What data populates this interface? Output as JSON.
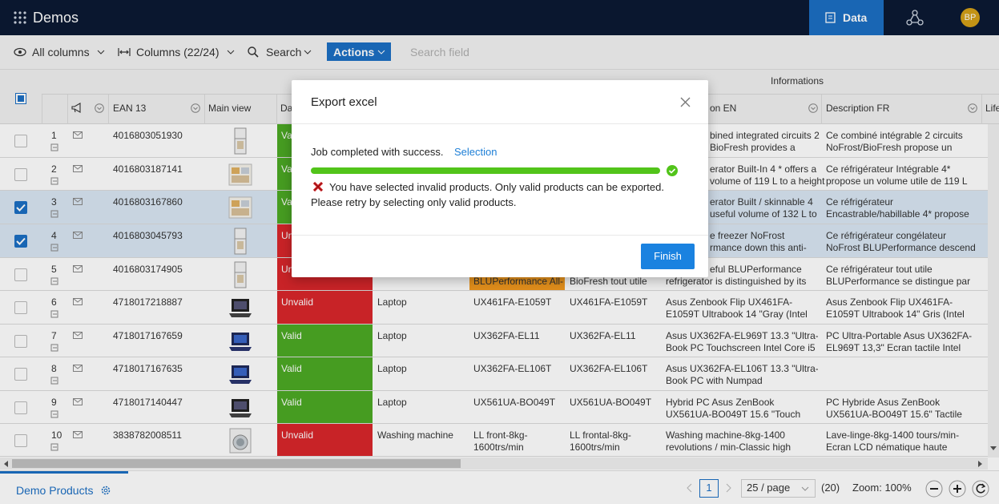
{
  "header": {
    "app_title": "Demos",
    "tab": "Data",
    "avatar": "BP"
  },
  "toolbar": {
    "all_columns": "All columns",
    "columns": "Columns (22/24)",
    "search": "Search",
    "actions": "Actions",
    "search_field": "Search field"
  },
  "table": {
    "group_header": "Informations",
    "columns": [
      {
        "label": "EAN 13",
        "x": 141
      },
      {
        "label": "Main view",
        "x": 260
      },
      {
        "label": "Da",
        "x": 350
      },
      {
        "label": "on EN",
        "x": 886
      },
      {
        "label": "Description FR",
        "x": 1031
      },
      {
        "label": "Life",
        "x": 1230
      }
    ],
    "rows": [
      {
        "number": "1",
        "ean": "4016803051930",
        "status": "Va",
        "status_color": "#4caa24",
        "checked": false,
        "desc_en": [
          "bined integrated circuits 2",
          "BioFresh provides a"
        ],
        "desc_fr": [
          "Ce combiné intégrable 2 circuits",
          "NoFrost/BioFresh propose un"
        ]
      },
      {
        "number": "2",
        "ean": "4016803187141",
        "status": "Va",
        "status_color": "#4caa24",
        "checked": false,
        "desc_en": [
          "erator Built-In 4 * offers a",
          "volume of 119 L to a height"
        ],
        "desc_fr": [
          "Ce réfrigérateur Intégrable 4*",
          "propose un volume utile de 119 L"
        ]
      },
      {
        "number": "3",
        "ean": "4016803167860",
        "status": "Va",
        "status_color": "#4caa24",
        "checked": true,
        "desc_en": [
          "erator Built / skinnable 4",
          "useful volume of 132 L to"
        ],
        "desc_fr": [
          "Ce réfrigérateur",
          "Encastrable/habillable 4* propose"
        ]
      },
      {
        "number": "4",
        "ean": "4016803045793",
        "status": "Un",
        "status_color": "#d9262b",
        "checked": true,
        "desc_en": [
          "e freezer NoFrost",
          "rmance down this anti-"
        ],
        "desc_fr": [
          "Ce réfrigérateur congélateur",
          "NoFrost BLUPerformance descend"
        ]
      },
      {
        "number": "5",
        "ean": "4016803174905",
        "status": "Un",
        "status_color": "#d9262b",
        "checked": false,
        "col1": [
          null,
          "BLUPerformance All-"
        ],
        "col1_color": "#f29a1e",
        "col2": [
          null,
          "BioFresh tout utile"
        ],
        "desc_en": [
          "eful BLUPerformance",
          "refrigerator is distinguished by its"
        ],
        "desc_fr": [
          "Ce réfrigérateur tout utile",
          "BLUPerformance se distingue par"
        ]
      },
      {
        "number": "6",
        "ean": "4718017218887",
        "status": "Unvalid",
        "status_color": "#d9262b",
        "checked": false,
        "type": "Laptop",
        "col1": [
          "UX461FA-E1059T"
        ],
        "col2": [
          "UX461FA-E1059T"
        ],
        "desc_en": [
          "Asus Zenbook Flip UX461FA-",
          "E1059T Ultrabook 14 \"Gray (Intel"
        ],
        "desc_fr": [
          "Asus Zenbook Flip UX461FA-",
          "E1059T Ultrabook 14\" Gris (Intel"
        ]
      },
      {
        "number": "7",
        "ean": "4718017167659",
        "status": "Valid",
        "status_color": "#4caa24",
        "checked": false,
        "type": "Laptop",
        "col1": [
          "UX362FA-EL11"
        ],
        "col2": [
          "UX362FA-EL11"
        ],
        "desc_en": [
          "Asus UX362FA-EL969T 13.3 \"Ultra-",
          "Book PC Touchscreen Intel Core i5"
        ],
        "desc_fr": [
          "PC Ultra-Portable Asus UX362FA-",
          "EL969T 13,3\" Ecran tactile Intel"
        ]
      },
      {
        "number": "8",
        "ean": "4718017167635",
        "status": "Valid",
        "status_color": "#4caa24",
        "checked": false,
        "type": "Laptop",
        "col1": [
          "UX362FA-EL106T"
        ],
        "col2": [
          "UX362FA-EL106T"
        ],
        "desc_en": [
          "Asus UX362FA-EL106T 13.3 \"Ultra-",
          "Book PC with Numpad"
        ],
        "desc_fr": []
      },
      {
        "number": "9",
        "ean": "4718017140447",
        "status": "Valid",
        "status_color": "#4caa24",
        "checked": false,
        "type": "Laptop",
        "col1": [
          "UX561UA-BO049T"
        ],
        "col2": [
          "UX561UA-BO049T"
        ],
        "desc_en": [
          "Hybrid PC Asus ZenBook",
          "UX561UA-BO049T 15.6 \"Touch"
        ],
        "desc_fr": [
          "PC Hybride Asus ZenBook",
          "UX561UA-BO049T 15.6\" Tactile"
        ]
      },
      {
        "number": "10",
        "ean": "3838782008511",
        "status": "Unvalid",
        "status_color": "#d9262b",
        "checked": false,
        "type": "Washing machine",
        "col1": [
          "LL front-8kg-",
          "1600trs/min"
        ],
        "col2": [
          "LL frontal-8kg-",
          "1600trs/min"
        ],
        "desc_en": [
          "Washing machine-8kg-1400",
          "revolutions / min-Classic high"
        ],
        "desc_fr": [
          "Lave-linge-8kg-1400 tours/min-",
          "Ecran LCD nématique haute"
        ]
      }
    ]
  },
  "modal": {
    "title": "Export excel",
    "message": "Job completed with success.",
    "link": "Selection",
    "error": [
      "You have selected invalid products. Only valid products can be exported.",
      "Please retry by selecting only valid products."
    ],
    "button": "Finish"
  },
  "footer": {
    "tab": "Demo Products",
    "page": "1",
    "page_size": "25 / page",
    "total": "(20)",
    "zoom": "Zoom: 100%"
  }
}
